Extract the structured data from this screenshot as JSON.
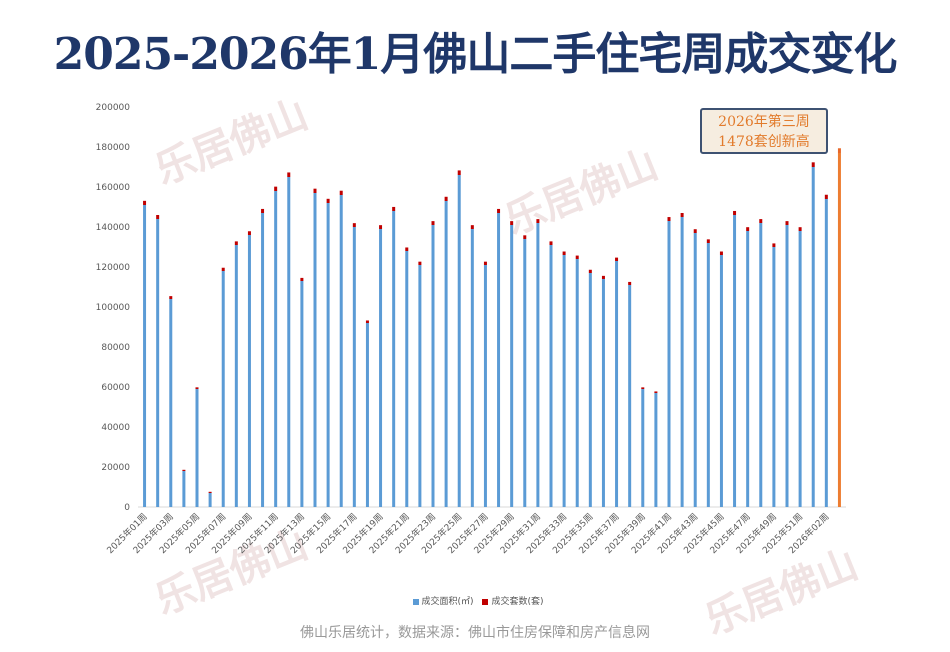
{
  "title": "2025-2026年1月佛山二手住宅周成交变化",
  "callout": {
    "line1": "2026年第三周",
    "line2": "1478套创新高"
  },
  "footer": "佛山乐居统计，数据来源：佛山市住房保障和房产信息网",
  "watermark": "乐居佛山",
  "colors": {
    "area": "#5b9bd5",
    "units": "#c00000",
    "highlight": "#ed7d31",
    "title": "#1f3769"
  },
  "chart_data": {
    "type": "bar",
    "title": "2025-2026年1月佛山二手住宅周成交变化",
    "ylim": [
      0,
      200000
    ],
    "yticks": [
      0,
      20000,
      40000,
      60000,
      80000,
      100000,
      120000,
      140000,
      160000,
      180000,
      200000
    ],
    "xtick_labels": [
      "2025年01周",
      "2025年03周",
      "2025年05周",
      "2025年07周",
      "2025年09周",
      "2025年11周",
      "2025年13周",
      "2025年15周",
      "2025年17周",
      "2025年19周",
      "2025年21周",
      "2025年23周",
      "2025年25周",
      "2025年27周",
      "2025年29周",
      "2025年31周",
      "2025年33周",
      "2025年35周",
      "2025年37周",
      "2025年39周",
      "2025年41周",
      "2025年43周",
      "2025年45周",
      "2025年47周",
      "2025年49周",
      "2025年51周",
      "2026年02周"
    ],
    "series": [
      {
        "name": "成交面积(㎡)",
        "values": [
          151000,
          144000,
          104000,
          18000,
          59000,
          7000,
          118000,
          131000,
          136000,
          147000,
          158000,
          165000,
          113000,
          157000,
          152000,
          156000,
          140000,
          92000,
          139000,
          148000,
          128000,
          121000,
          141000,
          153000,
          166000,
          139000,
          121000,
          147000,
          141000,
          134000,
          142000,
          131000,
          126000,
          124000,
          117000,
          114000,
          123000,
          111000,
          59000,
          57000,
          143000,
          145000,
          137000,
          132000,
          126000,
          146000,
          138000,
          142000,
          130000,
          141000,
          138000,
          170000,
          154000,
          177000
        ]
      },
      {
        "name": "成交套数(套)",
        "values": [
          1300,
          1250,
          900,
          160,
          520,
          60,
          1020,
          1130,
          1170,
          1270,
          1360,
          1420,
          970,
          1350,
          1310,
          1340,
          1200,
          790,
          1200,
          1270,
          1100,
          1040,
          1210,
          1320,
          1430,
          1200,
          1040,
          1270,
          1210,
          1150,
          1220,
          1130,
          1090,
          1070,
          1010,
          980,
          1060,
          960,
          510,
          490,
          1230,
          1250,
          1180,
          1140,
          1090,
          1260,
          1190,
          1220,
          1120,
          1210,
          1190,
          1460,
          1330,
          1478
        ]
      }
    ],
    "legend": [
      "成交面积(㎡)",
      "成交套数(套)"
    ]
  }
}
